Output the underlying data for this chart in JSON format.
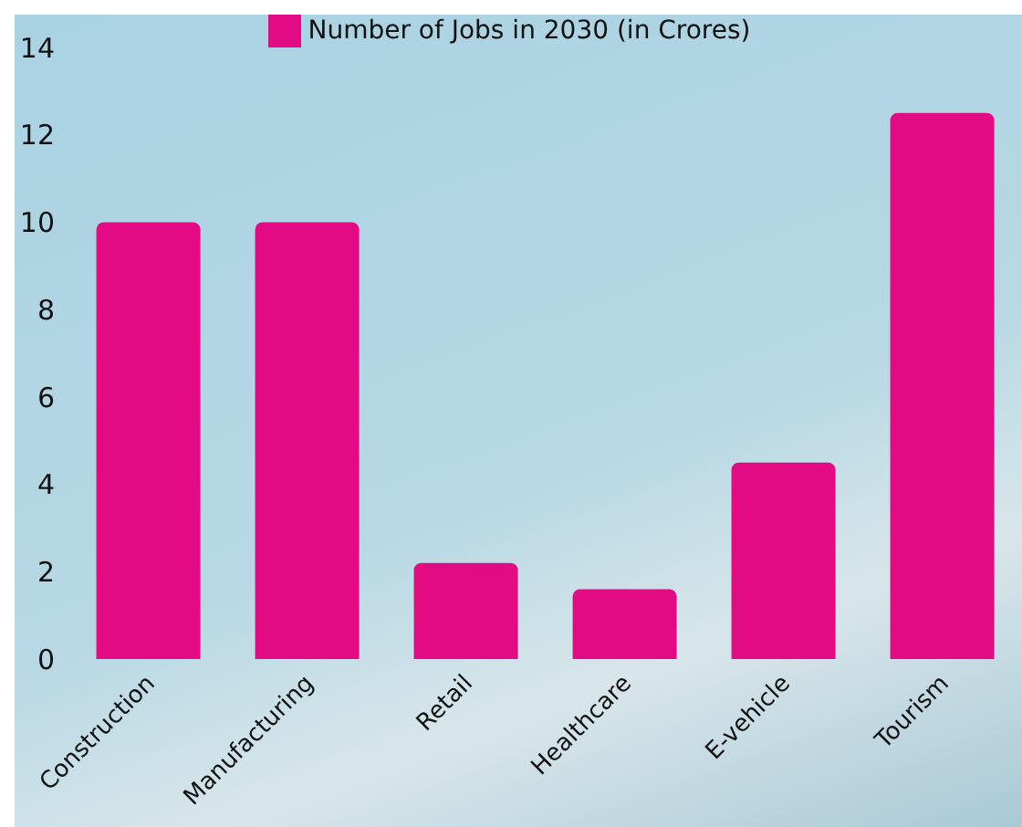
{
  "chart_data": {
    "type": "bar",
    "categories": [
      "Construction",
      "Manufacturing",
      "Retail",
      "Healthcare",
      "E-vehicle",
      "Tourism"
    ],
    "series": [
      {
        "name": "Number of Jobs in 2030 (in Crores)",
        "color": "#e30b83",
        "values": [
          10,
          10,
          2.2,
          1.6,
          4.5,
          12.5
        ]
      }
    ],
    "ylim": [
      0,
      14
    ],
    "yticks": [
      0,
      2,
      4,
      6,
      8,
      10,
      12,
      14
    ],
    "grid": false,
    "legend": "top"
  }
}
